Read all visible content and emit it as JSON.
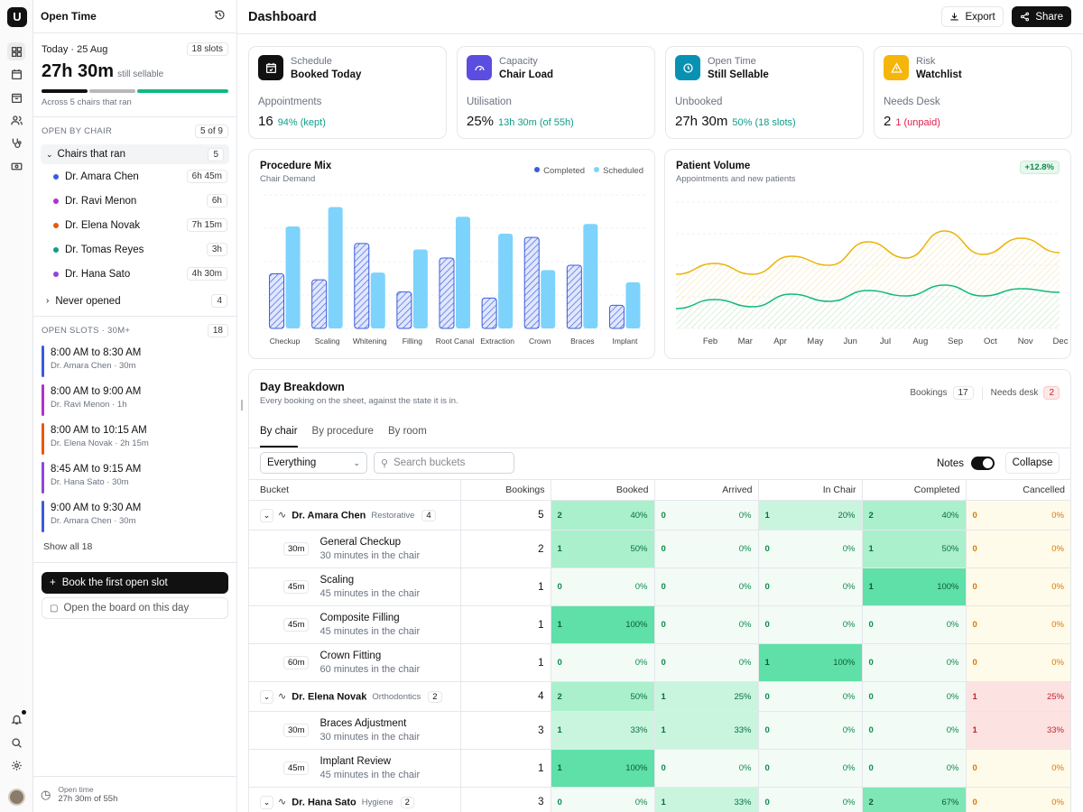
{
  "rail": {
    "logo": "U",
    "icons": [
      "dashboard-icon",
      "calendar-icon",
      "schedule-icon",
      "users-icon",
      "stethoscope-icon",
      "billing-icon"
    ],
    "bottom_icons": [
      "bell-icon",
      "search-icon",
      "settings-icon"
    ]
  },
  "sidebar": {
    "title": "Open Time",
    "today": {
      "date": "Today · 25 Aug",
      "slots_chip": "18 slots",
      "big": "27h 30m",
      "big_sub": "still sellable",
      "sub": "Across 5 chairs that ran",
      "bar": [
        {
          "color": "#111111",
          "frac": 0.25
        },
        {
          "color": "#b8b8b8",
          "frac": 0.25
        },
        {
          "color": "#10b981",
          "frac": 0.5
        }
      ]
    },
    "chairs_section": {
      "label": "OPEN BY CHAIR",
      "count": "5 of 9",
      "group": "Chairs that ran",
      "group_count": "5",
      "chairs": [
        {
          "name": "Dr. Amara Chen",
          "time": "6h 45m",
          "color": "#3b5bdb"
        },
        {
          "name": "Dr. Ravi Menon",
          "time": "6h",
          "color": "#b030d0"
        },
        {
          "name": "Dr. Elena Novak",
          "time": "7h 15m",
          "color": "#e8590c"
        },
        {
          "name": "Dr. Tomas Reyes",
          "time": "3h",
          "color": "#0f9d8a"
        },
        {
          "name": "Dr. Hana Sato",
          "time": "4h 30m",
          "color": "#8e44e0"
        }
      ],
      "never": "Never opened",
      "never_count": "4"
    },
    "slots_section": {
      "label": "OPEN SLOTS · 30M+",
      "count": "18",
      "slots": [
        {
          "time": "8:00 AM to 8:30 AM",
          "who": "Dr. Amara Chen · 30m",
          "color": "#3b5bdb"
        },
        {
          "time": "8:00 AM to 9:00 AM",
          "who": "Dr. Ravi Menon · 1h",
          "color": "#b030d0"
        },
        {
          "time": "8:00 AM to 10:15 AM",
          "who": "Dr. Elena Novak · 2h 15m",
          "color": "#e8590c"
        },
        {
          "time": "8:45 AM to 9:15 AM",
          "who": "Dr. Hana Sato · 30m",
          "color": "#8e44e0"
        },
        {
          "time": "9:00 AM to 9:30 AM",
          "who": "Dr. Amara Chen · 30m",
          "color": "#3b5bdb"
        }
      ],
      "show_all": "Show all 18"
    },
    "book_button": "Book the first open slot",
    "board_button": "Open the board on this day",
    "footer": {
      "label": "Open time",
      "value": "27h 30m of 55h"
    }
  },
  "header": {
    "title": "Dashboard",
    "export": "Export",
    "share": "Share"
  },
  "kpis": [
    {
      "icon": "calendar-check-icon",
      "color": "#111111",
      "label": "Schedule",
      "title": "Booked Today",
      "metric_label": "Appointments",
      "value": "16",
      "delta": "94% (kept)",
      "delta_color": "#0f9d8a"
    },
    {
      "icon": "gauge-icon",
      "color": "#5b4de0",
      "label": "Capacity",
      "title": "Chair Load",
      "metric_label": "Utilisation",
      "value": "25%",
      "delta": "13h 30m (of 55h)",
      "delta_color": "#0f9d8a"
    },
    {
      "icon": "clock-icon",
      "color": "#0891b2",
      "label": "Open Time",
      "title": "Still Sellable",
      "metric_label": "Unbooked",
      "value": "27h 30m",
      "delta": "50% (18 slots)",
      "delta_color": "#0f9d8a"
    },
    {
      "icon": "warning-icon",
      "color": "#f5b50a",
      "label": "Risk",
      "title": "Watchlist",
      "metric_label": "Needs Desk",
      "value": "2",
      "delta": "1 (unpaid)",
      "delta_color": "#e11d48"
    }
  ],
  "chart_data": [
    {
      "type": "bar",
      "title": "Procedure Mix",
      "subtitle": "Chair Demand",
      "legend_position": "top-right",
      "categories": [
        "Checkup",
        "Scaling",
        "Whitening",
        "Filling",
        "Root Canal",
        "Extraction",
        "Crown",
        "Braces",
        "Implant"
      ],
      "series": [
        {
          "name": "Completed",
          "color": "#3b5bdb",
          "values": [
            45,
            40,
            70,
            30,
            58,
            25,
            75,
            52,
            19
          ]
        },
        {
          "name": "Scheduled",
          "color": "#7dd3fc",
          "values": [
            84,
            100,
            46,
            65,
            92,
            78,
            48,
            86,
            38
          ]
        }
      ],
      "ylim": [
        0,
        110
      ],
      "grid": true
    },
    {
      "type": "area",
      "title": "Patient Volume",
      "subtitle": "Appointments and new patients",
      "badge": "+12.8%",
      "categories": [
        "Feb",
        "Mar",
        "Apr",
        "May",
        "Jun",
        "Jul",
        "Aug",
        "Sep",
        "Oct",
        "Nov",
        "Dec"
      ],
      "series": [
        {
          "name": "Appointments",
          "color": "#eab308",
          "values": [
            60,
            72,
            60,
            80,
            70,
            96,
            78,
            108,
            82,
            100,
            84
          ]
        },
        {
          "name": "New patients",
          "color": "#10b981",
          "values": [
            22,
            32,
            24,
            38,
            30,
            42,
            36,
            48,
            36,
            44,
            40
          ]
        }
      ],
      "ylim": [
        0,
        140
      ],
      "grid": true
    }
  ],
  "breakdown": {
    "title": "Day Breakdown",
    "subtitle": "Every booking on the sheet, against the state it is in.",
    "bookings_label": "Bookings",
    "bookings": "17",
    "needs_label": "Needs desk",
    "needs": "2",
    "tabs": [
      "By chair",
      "By procedure",
      "By room"
    ],
    "filter": "Everything",
    "search_placeholder": "Search buckets",
    "notes": "Notes",
    "collapse": "Collapse",
    "columns": [
      "Bucket",
      "Bookings",
      "Booked",
      "Arrived",
      "In Chair",
      "Completed",
      "Cancelled"
    ],
    "rows": [
      {
        "kind": "parent",
        "name": "Dr. Amara Chen",
        "spec": "Restorative",
        "count": "4",
        "bookings": "5",
        "cells": [
          [
            "2",
            "40%"
          ],
          [
            "0",
            "0%"
          ],
          [
            "1",
            "20%"
          ],
          [
            "2",
            "40%"
          ],
          [
            "0",
            "0%"
          ]
        ]
      },
      {
        "kind": "child",
        "dur": "30m",
        "name": "General Checkup",
        "sub": "30 minutes in the chair",
        "bookings": "2",
        "cells": [
          [
            "1",
            "50%"
          ],
          [
            "0",
            "0%"
          ],
          [
            "0",
            "0%"
          ],
          [
            "1",
            "50%"
          ],
          [
            "0",
            "0%"
          ]
        ]
      },
      {
        "kind": "child",
        "dur": "45m",
        "name": "Scaling",
        "sub": "45 minutes in the chair",
        "bookings": "1",
        "cells": [
          [
            "0",
            "0%"
          ],
          [
            "0",
            "0%"
          ],
          [
            "0",
            "0%"
          ],
          [
            "1",
            "100%"
          ],
          [
            "0",
            "0%"
          ]
        ]
      },
      {
        "kind": "child",
        "dur": "45m",
        "name": "Composite Filling",
        "sub": "45 minutes in the chair",
        "bookings": "1",
        "cells": [
          [
            "1",
            "100%"
          ],
          [
            "0",
            "0%"
          ],
          [
            "0",
            "0%"
          ],
          [
            "0",
            "0%"
          ],
          [
            "0",
            "0%"
          ]
        ]
      },
      {
        "kind": "child",
        "dur": "60m",
        "name": "Crown Fitting",
        "sub": "60 minutes in the chair",
        "bookings": "1",
        "cells": [
          [
            "0",
            "0%"
          ],
          [
            "0",
            "0%"
          ],
          [
            "1",
            "100%"
          ],
          [
            "0",
            "0%"
          ],
          [
            "0",
            "0%"
          ]
        ]
      },
      {
        "kind": "parent",
        "name": "Dr. Elena Novak",
        "spec": "Orthodontics",
        "count": "2",
        "bookings": "4",
        "cells": [
          [
            "2",
            "50%"
          ],
          [
            "1",
            "25%"
          ],
          [
            "0",
            "0%"
          ],
          [
            "0",
            "0%"
          ],
          [
            "1",
            "25%"
          ]
        ]
      },
      {
        "kind": "child",
        "dur": "30m",
        "name": "Braces Adjustment",
        "sub": "30 minutes in the chair",
        "bookings": "3",
        "cells": [
          [
            "1",
            "33%"
          ],
          [
            "1",
            "33%"
          ],
          [
            "0",
            "0%"
          ],
          [
            "0",
            "0%"
          ],
          [
            "1",
            "33%"
          ]
        ]
      },
      {
        "kind": "child",
        "dur": "45m",
        "name": "Implant Review",
        "sub": "45 minutes in the chair",
        "bookings": "1",
        "cells": [
          [
            "1",
            "100%"
          ],
          [
            "0",
            "0%"
          ],
          [
            "0",
            "0%"
          ],
          [
            "0",
            "0%"
          ],
          [
            "0",
            "0%"
          ]
        ]
      },
      {
        "kind": "parent",
        "name": "Dr. Hana Sato",
        "spec": "Hygiene",
        "count": "2",
        "bookings": "3",
        "cells": [
          [
            "0",
            "0%"
          ],
          [
            "1",
            "33%"
          ],
          [
            "0",
            "0%"
          ],
          [
            "2",
            "67%"
          ],
          [
            "0",
            "0%"
          ]
        ]
      }
    ]
  }
}
